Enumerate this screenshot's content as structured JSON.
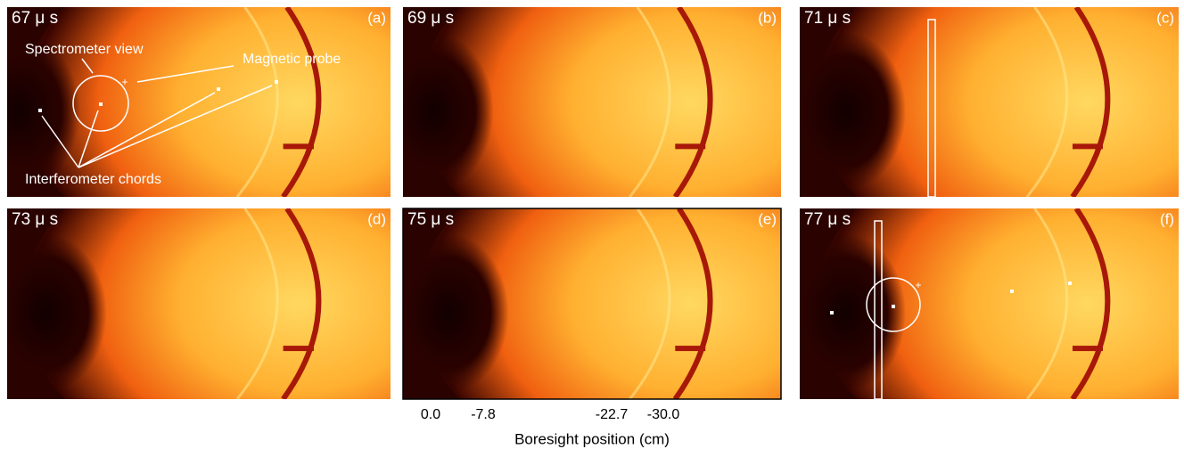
{
  "panels": [
    {
      "time": "67 μ s",
      "label": "(a)"
    },
    {
      "time": "69 μ s",
      "label": "(b)"
    },
    {
      "time": "71 μ s",
      "label": "(c)"
    },
    {
      "time": "73 μ s",
      "label": "(d)"
    },
    {
      "time": "75 μ s",
      "label": "(e)"
    },
    {
      "time": "77 μ s",
      "label": "(f)"
    }
  ],
  "annotations": {
    "spectrometer": "Spectrometer view",
    "probe": "Magnetic probe",
    "chords": "Interferometer chords"
  },
  "axis": {
    "ticks": [
      "0.0",
      "-7.8",
      "-22.7",
      "-30.0"
    ],
    "title": "Boresight position (cm)"
  }
}
